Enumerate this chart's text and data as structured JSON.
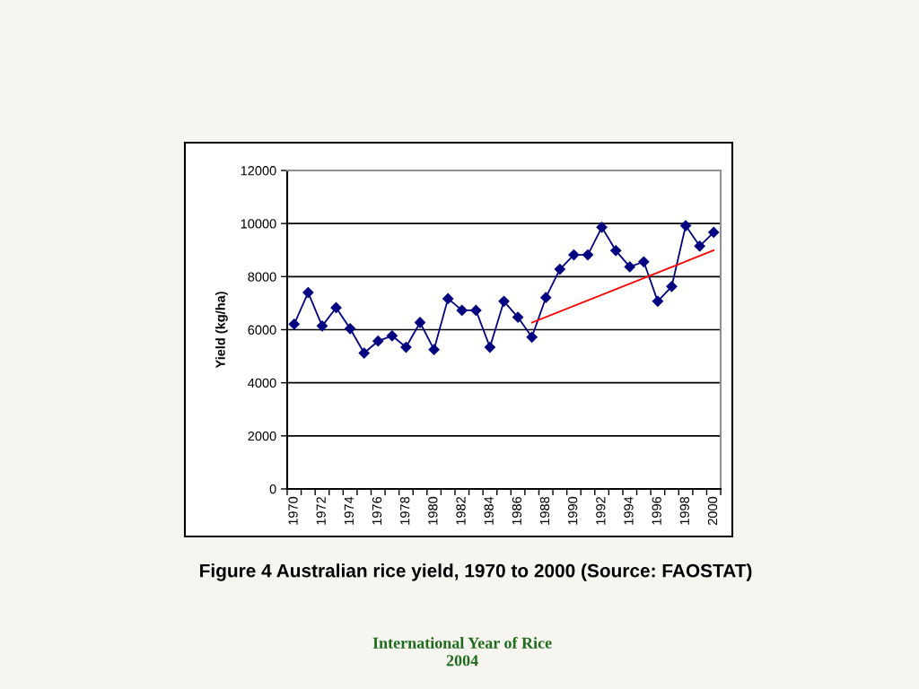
{
  "chart_data": {
    "type": "line",
    "title": "Figure 4 Australian rice yield, 1970 to 2000 (Source: FAOSTAT)",
    "ylabel": "Yield (kg/ha)",
    "annotations": [
      "International Year of Rice\n2004"
    ],
    "x": [
      1970,
      1971,
      1972,
      1973,
      1974,
      1975,
      1976,
      1977,
      1978,
      1979,
      1980,
      1981,
      1982,
      1983,
      1984,
      1985,
      1986,
      1987,
      1988,
      1989,
      1990,
      1991,
      1992,
      1993,
      1994,
      1995,
      1996,
      1997,
      1998,
      1999,
      2000
    ],
    "series": [
      {
        "color": "#000080",
        "values": [
          6210,
          7400,
          6140,
          6830,
          6040,
          5120,
          5570,
          5770,
          5340,
          6270,
          5250,
          7170,
          6730,
          6730,
          5340,
          7070,
          6470,
          5720,
          7210,
          8280,
          8820,
          8820,
          9860,
          8980,
          8370,
          8560,
          7070,
          7630,
          9920,
          9150,
          9670
        ]
      },
      {
        "type": "line",
        "color": "#ff0000",
        "marker": "none",
        "x": [
          1987,
          2000
        ],
        "values": [
          6270,
          8990
        ]
      }
    ],
    "xlim": [
      1969.5,
      2000.5
    ],
    "xticks": [
      {
        "value": 1969.5,
        "label": null
      },
      1970,
      {
        "value": 1970.5,
        "label": null
      },
      {
        "value": 1971.5,
        "label": null
      },
      1972,
      {
        "value": 1972.5,
        "label": null
      },
      {
        "value": 1973.5,
        "label": null
      },
      1974,
      {
        "value": 1974.5,
        "label": null
      },
      {
        "value": 1975.5,
        "label": null
      },
      1976,
      {
        "value": 1976.5,
        "label": null
      },
      {
        "value": 1977.5,
        "label": null
      },
      1978,
      {
        "value": 1978.5,
        "label": null
      },
      {
        "value": 1979.5,
        "label": null
      },
      1980,
      {
        "value": 1980.5,
        "label": null
      },
      {
        "value": 1981.5,
        "label": null
      },
      1982,
      {
        "value": 1982.5,
        "label": null
      },
      {
        "value": 1983.5,
        "label": null
      },
      1984,
      {
        "value": 1984.5,
        "label": null
      },
      {
        "value": 1985.5,
        "label": null
      },
      1986,
      {
        "value": 1986.5,
        "label": null
      },
      {
        "value": 1987.5,
        "label": null
      },
      1988,
      {
        "value": 1988.5,
        "label": null
      },
      {
        "value": 1989.5,
        "label": null
      },
      1990,
      {
        "value": 1990.5,
        "label": null
      },
      {
        "value": 1991.5,
        "label": null
      },
      1992,
      {
        "value": 1992.5,
        "label": null
      },
      {
        "value": 1993.5,
        "label": null
      },
      1994,
      {
        "value": 1994.5,
        "label": null
      },
      {
        "value": 1995.5,
        "label": null
      },
      1996,
      {
        "value": 1996.5,
        "label": null
      },
      {
        "value": 1997.5,
        "label": null
      },
      1998,
      {
        "value": 1998.5,
        "label": null
      },
      {
        "value": 1999.5,
        "label": null
      },
      2000,
      {
        "value": 2000.5,
        "label": null
      }
    ],
    "ylim": [
      0,
      12000
    ],
    "yticks": [
      0,
      2000,
      4000,
      6000,
      8000,
      10000,
      12000
    ],
    "grid": "y",
    "marker": "diamond",
    "line_style": "solid"
  }
}
